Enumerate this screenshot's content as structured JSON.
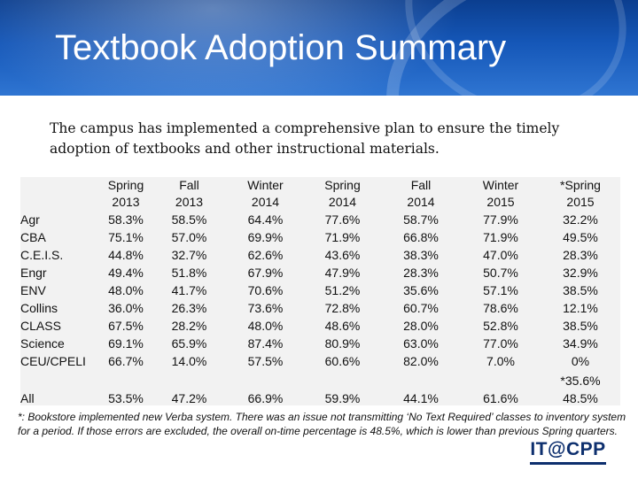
{
  "slide": {
    "title": "Textbook Adoption Summary",
    "intro": "The campus has implemented a comprehensive plan to ensure the timely adoption of textbooks and other instructional materials."
  },
  "table": {
    "headers": [
      [
        "Spring",
        "2013"
      ],
      [
        "Fall",
        "2013"
      ],
      [
        "Winter",
        "2014"
      ],
      [
        "Spring",
        "2014"
      ],
      [
        "Fall",
        "2014"
      ],
      [
        "Winter",
        "2015"
      ],
      [
        "*Spring",
        "2015"
      ]
    ],
    "rows": [
      {
        "label": "Agr",
        "values": [
          "58.3%",
          "58.5%",
          "64.4%",
          "77.6%",
          "58.7%",
          "77.9%",
          "32.2%"
        ]
      },
      {
        "label": "CBA",
        "values": [
          "75.1%",
          "57.0%",
          "69.9%",
          "71.9%",
          "66.8%",
          "71.9%",
          "49.5%"
        ]
      },
      {
        "label": "C.E.I.S.",
        "values": [
          "44.8%",
          "32.7%",
          "62.6%",
          "43.6%",
          "38.3%",
          "47.0%",
          "28.3%"
        ]
      },
      {
        "label": "Engr",
        "values": [
          "49.4%",
          "51.8%",
          "67.9%",
          "47.9%",
          "28.3%",
          "50.7%",
          "32.9%"
        ]
      },
      {
        "label": "ENV",
        "values": [
          "48.0%",
          "41.7%",
          "70.6%",
          "51.2%",
          "35.6%",
          "57.1%",
          "38.5%"
        ]
      },
      {
        "label": "Collins",
        "values": [
          "36.0%",
          "26.3%",
          "73.6%",
          "72.8%",
          "60.7%",
          "78.6%",
          "12.1%"
        ]
      },
      {
        "label": "CLASS",
        "values": [
          "67.5%",
          "28.2%",
          "48.0%",
          "48.6%",
          "28.0%",
          "52.8%",
          "38.5%"
        ]
      },
      {
        "label": "Science",
        "values": [
          "69.1%",
          "65.9%",
          "87.4%",
          "80.9%",
          "63.0%",
          "77.0%",
          "34.9%"
        ]
      },
      {
        "label": "CEU/CPELI",
        "values": [
          "66.7%",
          "14.0%",
          "57.5%",
          "60.6%",
          "82.0%",
          "7.0%",
          "0%"
        ]
      }
    ],
    "all_row": {
      "label": "All",
      "values": [
        "53.5%",
        "47.2%",
        "66.9%",
        "59.9%",
        "44.1%",
        "61.6%"
      ],
      "last_adjusted": "*35.6%",
      "last_corrected": "48.5%"
    }
  },
  "footnote": "*: Bookstore implemented new Verba system.  There was an issue not transmitting ‘No Text Required’ classes to inventory system for a period.  If those errors are excluded, the overall on-time percentage is 48.5%, which is lower than previous Spring quarters.",
  "logo": {
    "text": "IT@CPP"
  },
  "colors": {
    "header_dark": "#0b3e8f",
    "header_light": "#2f75d2",
    "table_bg": "#f2f2f2",
    "logo": "#0d2f6e"
  }
}
